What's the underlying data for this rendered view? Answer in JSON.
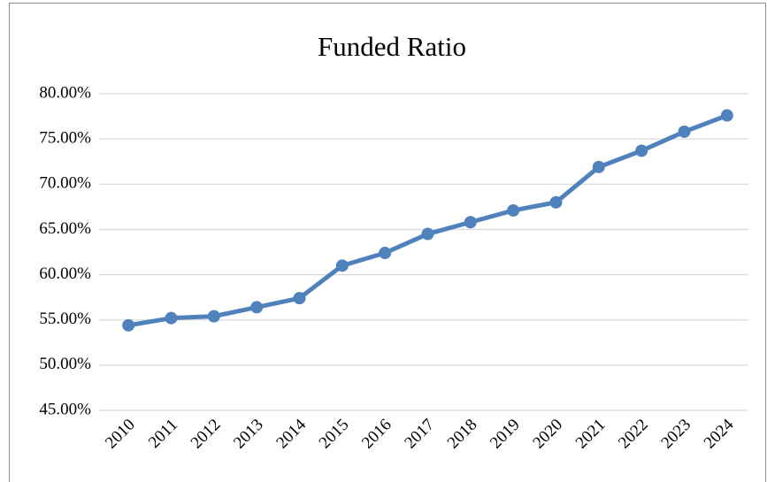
{
  "chart_data": {
    "type": "line",
    "title": "Funded Ratio",
    "categories": [
      "2010",
      "2011",
      "2012",
      "2013",
      "2014",
      "2015",
      "2016",
      "2017",
      "2018",
      "2019",
      "2020",
      "2021",
      "2022",
      "2023",
      "2024"
    ],
    "series": [
      {
        "name": "Funded Ratio",
        "color": "#4f81bd",
        "values": [
          54.4,
          55.2,
          55.4,
          56.4,
          57.4,
          61.0,
          62.4,
          64.5,
          65.8,
          67.1,
          68.0,
          71.9,
          73.7,
          75.8,
          77.6
        ]
      }
    ],
    "ylim": [
      45,
      80
    ],
    "yticks": [
      {
        "value": 45,
        "label": "45.00%"
      },
      {
        "value": 50,
        "label": "50.00%"
      },
      {
        "value": 55,
        "label": "55.00%"
      },
      {
        "value": 60,
        "label": "60.00%"
      },
      {
        "value": 65,
        "label": "65.00%"
      },
      {
        "value": 70,
        "label": "70.00%"
      },
      {
        "value": 75,
        "label": "75.00%"
      },
      {
        "value": 80,
        "label": "80.00%"
      }
    ],
    "grid": true
  }
}
